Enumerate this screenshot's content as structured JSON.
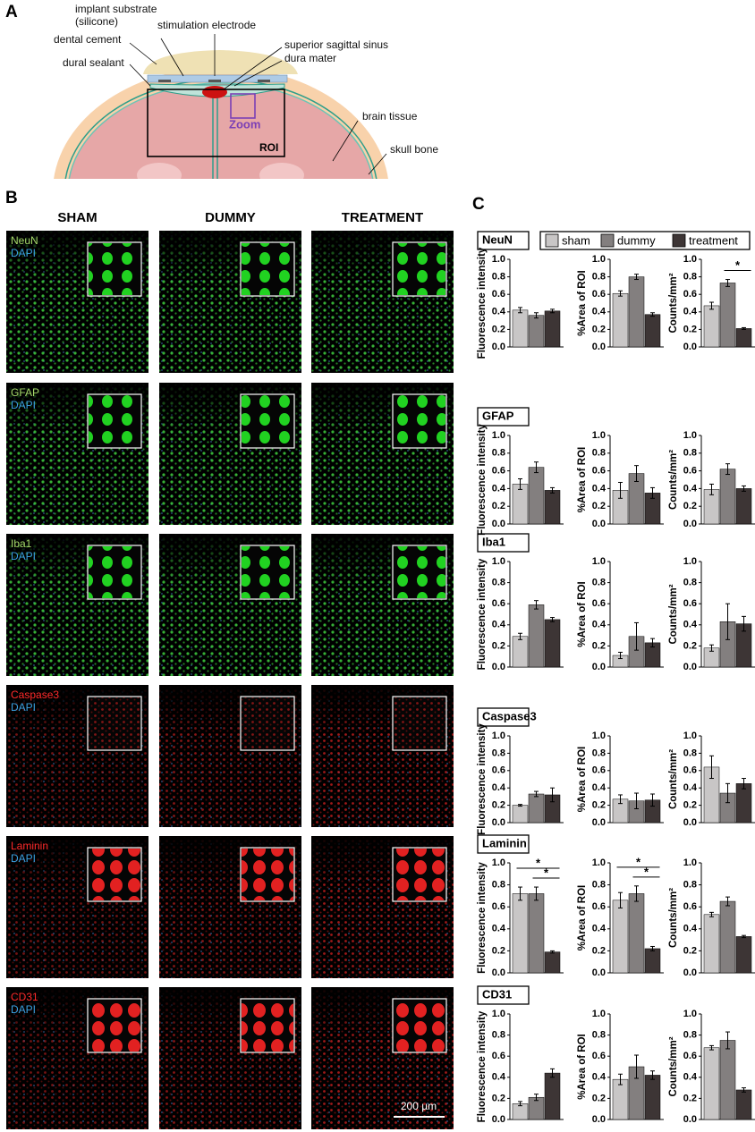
{
  "panel_letters": [
    "A",
    "B",
    "C"
  ],
  "diagram": {
    "implant_substrate": "implant substrate",
    "silicone": "(silicone)",
    "stimulation_electrode": "stimulation electrode",
    "dental_cement": "dental cement",
    "superior_sagittal_sinus": "superior sagittal sinus",
    "dura_mater": "dura mater",
    "dural_sealant": "dural sealant",
    "zoom": "Zoom",
    "roi": "ROI",
    "brain_tissue": "brain tissue",
    "skull_bone": "skull bone"
  },
  "markers": [
    {
      "name": "NeuN",
      "color": "#a6d96a"
    },
    {
      "name": "GFAP",
      "color": "#a6d96a"
    },
    {
      "name": "Iba1",
      "color": "#a6d96a"
    },
    {
      "name": "Caspase3",
      "color": "#ff2a2a"
    },
    {
      "name": "Laminin",
      "color": "#ff2a2a"
    },
    {
      "name": "CD31",
      "color": "#ff2a2a"
    }
  ],
  "images": {
    "columns": [
      "SHAM",
      "DUMMY",
      "TREATMENT"
    ],
    "counterstain": "DAPI",
    "scale_bar": "200 µm"
  },
  "panel_c": {
    "legend": [
      {
        "name": "sham",
        "color": "#c8c6c6"
      },
      {
        "name": "dummy",
        "color": "#837f7f"
      },
      {
        "name": "treatment",
        "color": "#3d3535"
      }
    ],
    "ylim": [
      0,
      1
    ],
    "yticks": [
      {
        "value": 0,
        "label": "0.0"
      },
      {
        "value": 0.2,
        "label": "0.2"
      },
      {
        "value": 0.4,
        "label": "0.4"
      },
      {
        "value": 0.6,
        "label": "0.6"
      },
      {
        "value": 0.8,
        "label": "0.8"
      },
      {
        "value": 1,
        "label": "1.0"
      }
    ]
  },
  "chart_data": [
    {
      "type": "bar",
      "ylabel": "Fluorescence intensity",
      "values": [
        0.42,
        0.36,
        0.41
      ],
      "errors": [
        0.03,
        0.03,
        0.02
      ]
    },
    {
      "type": "bar",
      "ylabel": "%Area of ROI",
      "values": [
        0.61,
        0.8,
        0.37
      ],
      "errors": [
        0.03,
        0.03,
        0.02
      ]
    },
    {
      "type": "bar",
      "ylabel": "Counts/mm²",
      "values": [
        0.47,
        0.73,
        0.21
      ],
      "errors": [
        0.04,
        0.04,
        0.01
      ],
      "significance": [
        {
          "pair": [
            1,
            2
          ],
          "label": "*"
        }
      ]
    },
    {
      "type": "bar",
      "ylabel": "Fluorescence intensity",
      "values": [
        0.45,
        0.64,
        0.38
      ],
      "errors": [
        0.06,
        0.06,
        0.03
      ]
    },
    {
      "type": "bar",
      "ylabel": "%Area of ROI",
      "values": [
        0.38,
        0.57,
        0.35
      ],
      "errors": [
        0.09,
        0.09,
        0.06
      ]
    },
    {
      "type": "bar",
      "ylabel": "Counts/mm²",
      "values": [
        0.39,
        0.62,
        0.4
      ],
      "errors": [
        0.06,
        0.06,
        0.03
      ]
    },
    {
      "type": "bar",
      "ylabel": "Fluorescence intensity",
      "values": [
        0.29,
        0.59,
        0.45
      ],
      "errors": [
        0.03,
        0.04,
        0.02
      ]
    },
    {
      "type": "bar",
      "ylabel": "%Area of ROI",
      "values": [
        0.11,
        0.29,
        0.23
      ],
      "errors": [
        0.03,
        0.13,
        0.04
      ]
    },
    {
      "type": "bar",
      "ylabel": "Counts/mm²",
      "values": [
        0.18,
        0.43,
        0.41
      ],
      "errors": [
        0.03,
        0.17,
        0.07
      ]
    },
    {
      "type": "bar",
      "ylabel": "Fluorescence intensity",
      "values": [
        0.2,
        0.33,
        0.32
      ],
      "errors": [
        0.01,
        0.03,
        0.08
      ]
    },
    {
      "type": "bar",
      "ylabel": "%Area of ROI",
      "values": [
        0.27,
        0.25,
        0.26
      ],
      "errors": [
        0.05,
        0.09,
        0.07
      ]
    },
    {
      "type": "bar",
      "ylabel": "Counts/mm²",
      "values": [
        0.64,
        0.34,
        0.45
      ],
      "errors": [
        0.13,
        0.11,
        0.06
      ]
    },
    {
      "type": "bar",
      "ylabel": "Fluorescence intensity",
      "values": [
        0.72,
        0.72,
        0.19
      ],
      "errors": [
        0.06,
        0.06,
        0.01
      ],
      "significance": [
        {
          "pair": [
            1,
            2
          ],
          "label": "*"
        },
        {
          "pair": [
            0,
            2
          ],
          "label": "*"
        }
      ]
    },
    {
      "type": "bar",
      "ylabel": "%Area of ROI",
      "values": [
        0.66,
        0.72,
        0.22
      ],
      "errors": [
        0.07,
        0.07,
        0.02
      ],
      "significance": [
        {
          "pair": [
            1,
            2
          ],
          "label": "*"
        },
        {
          "pair": [
            0,
            2
          ],
          "label": "*"
        }
      ]
    },
    {
      "type": "bar",
      "ylabel": "Counts/mm²",
      "values": [
        0.53,
        0.65,
        0.33
      ],
      "errors": [
        0.02,
        0.04,
        0.01
      ]
    },
    {
      "type": "bar",
      "ylabel": "Fluorescence intensity",
      "values": [
        0.15,
        0.21,
        0.44
      ],
      "errors": [
        0.02,
        0.03,
        0.04
      ]
    },
    {
      "type": "bar",
      "ylabel": "%Area of ROI",
      "values": [
        0.38,
        0.5,
        0.42
      ],
      "errors": [
        0.05,
        0.11,
        0.04
      ]
    },
    {
      "type": "bar",
      "ylabel": "Counts/mm²",
      "values": [
        0.68,
        0.75,
        0.28
      ],
      "errors": [
        0.02,
        0.08,
        0.02
      ]
    }
  ]
}
